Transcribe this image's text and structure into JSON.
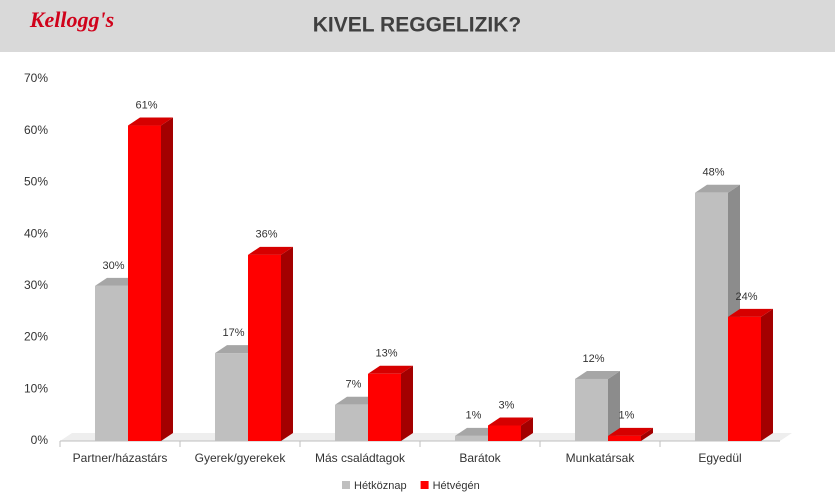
{
  "chart_data": {
    "type": "bar3d",
    "brand": "Kellogg's",
    "title": "KIVEL REGGELIZIK?",
    "categories": [
      "Partner/házastárs",
      "Gyerek/gyerekek",
      "Más családtagok",
      "Barátok",
      "Munkatársak",
      "Egyedül"
    ],
    "series": [
      {
        "name": "Hétköznap",
        "color": "#bfbfbf",
        "side": "#8c8c8c",
        "top": "#a6a6a6",
        "values": [
          30,
          17,
          7,
          1,
          12,
          48
        ],
        "value_labels": [
          "30%",
          "17%",
          "7%",
          "1%",
          "12%",
          "48%"
        ]
      },
      {
        "name": "Hétvégén",
        "color": "#ff0000",
        "side": "#a30000",
        "top": "#d60000",
        "values": [
          61,
          36,
          13,
          3,
          1,
          24
        ],
        "value_labels": [
          "61%",
          "36%",
          "13%",
          "3%",
          "1%",
          "24%"
        ]
      }
    ],
    "ylim": [
      0,
      70
    ],
    "yticks": [
      {
        "value": 0,
        "label": "0%"
      },
      {
        "value": 10,
        "label": "10%"
      },
      {
        "value": 20,
        "label": "20%"
      },
      {
        "value": 30,
        "label": "30%"
      },
      {
        "value": 40,
        "label": "40%"
      },
      {
        "value": 50,
        "label": "50%"
      },
      {
        "value": 60,
        "label": "60%"
      },
      {
        "value": 70,
        "label": "70%"
      }
    ],
    "legend": "bottom"
  }
}
